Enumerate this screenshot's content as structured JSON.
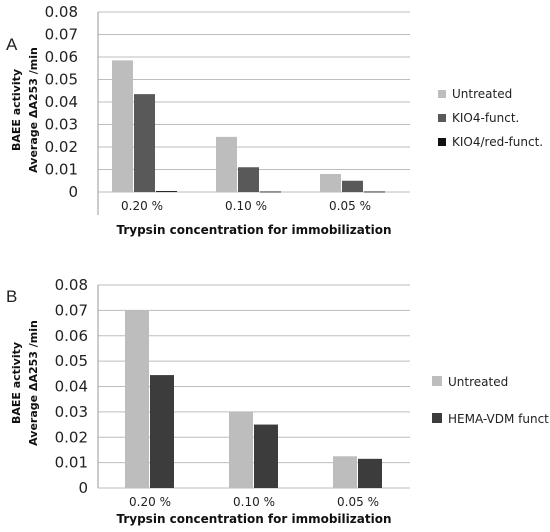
{
  "chart_data": [
    {
      "panel": "A",
      "type": "bar",
      "ylabel_line1": "BAEE activity",
      "ylabel_line2": "Average ΔA253  /min",
      "xlabel": "Trypsin concentration for immobilization",
      "categories": [
        "0.20 %",
        "0.10 %",
        "0.05 %"
      ],
      "ylim": [
        0,
        0.08
      ],
      "yticks": [
        "0",
        "0.01",
        "0.02",
        "0.03",
        "0.04",
        "0.05",
        "0.06",
        "0.07",
        "0.08"
      ],
      "grid": true,
      "legend_position": "right",
      "series": [
        {
          "name": "Untreated",
          "color": "#bdbdbd",
          "values": [
            0.0585,
            0.0245,
            0.008
          ]
        },
        {
          "name": "KIO4-funct.",
          "color": "#595959",
          "values": [
            0.0435,
            0.011,
            0.005
          ]
        },
        {
          "name": "KIO4/red-funct.",
          "color": "#111111",
          "values": [
            0.0004,
            0.0002,
            0.0002
          ]
        }
      ]
    },
    {
      "panel": "B",
      "type": "bar",
      "ylabel_line1": "BAEE activity",
      "ylabel_line2": "Average ΔA253  /min",
      "xlabel": "Trypsin concentration for immobilization",
      "categories": [
        "0.20 %",
        "0.10 %",
        "0.05 %"
      ],
      "ylim": [
        0,
        0.08
      ],
      "yticks": [
        "0",
        "0.01",
        "0.02",
        "0.03",
        "0.04",
        "0.05",
        "0.06",
        "0.07",
        "0.08"
      ],
      "grid": true,
      "legend_position": "right",
      "series": [
        {
          "name": "Untreated",
          "color": "#bdbdbd",
          "values": [
            0.07,
            0.03,
            0.0125
          ]
        },
        {
          "name": "HEMA-VDM funct.",
          "color": "#3c3c3c",
          "values": [
            0.0445,
            0.025,
            0.0115
          ]
        }
      ]
    }
  ]
}
